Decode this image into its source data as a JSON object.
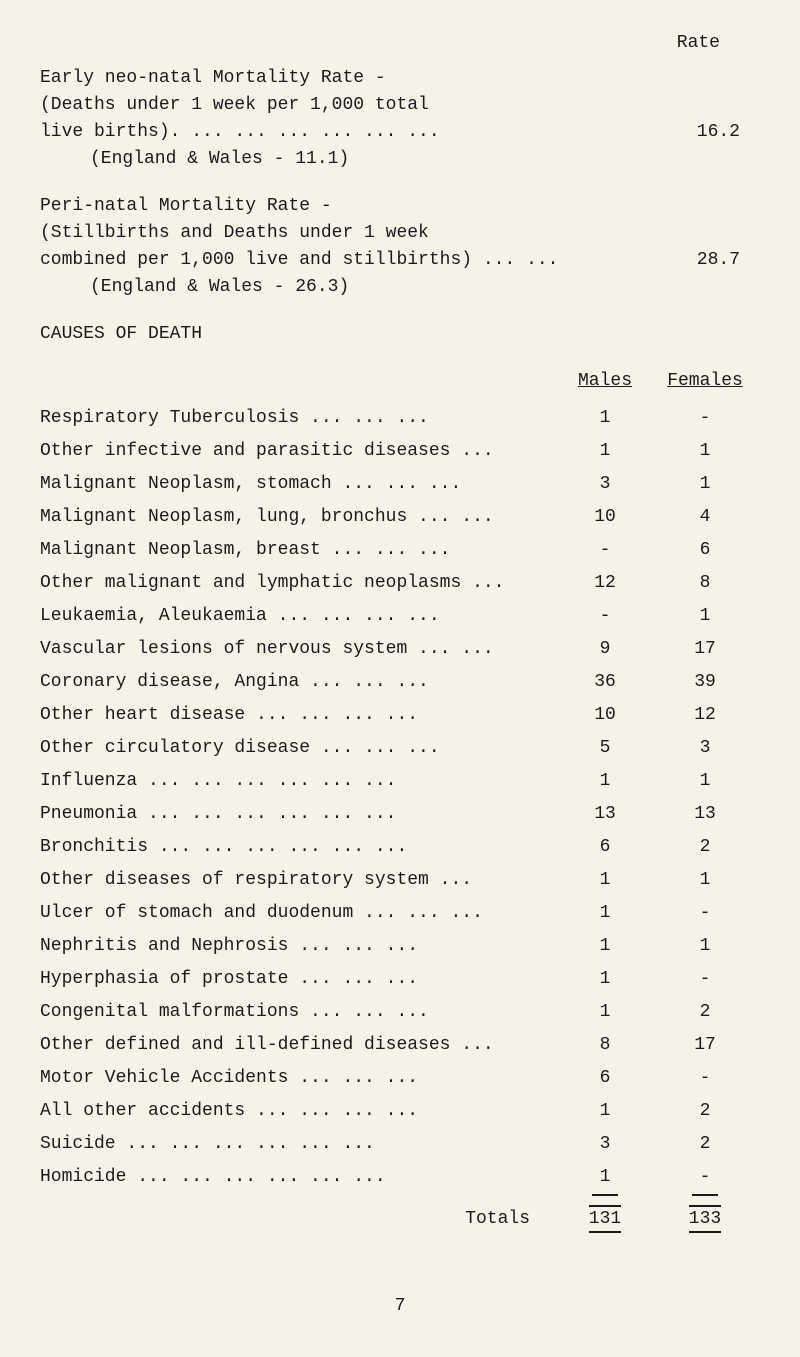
{
  "rates": {
    "header_label": "Rate",
    "early_neonatal": {
      "line1": "Early neo-natal Mortality Rate -",
      "line2": "(Deaths under 1 week per 1,000 total",
      "line3": "live births).    ...   ...   ...   ...   ...   ...",
      "line4": "(England & Wales - 11.1)",
      "value": "16.2"
    },
    "perinatal": {
      "line1": "Peri-natal Mortality Rate -",
      "line2": "(Stillbirths and Deaths under 1 week",
      "line3": "combined per 1,000 live and stillbirths)  ...   ...",
      "line4": "(England & Wales - 26.3)",
      "value": "28.7"
    }
  },
  "causes_heading": "CAUSES OF DEATH",
  "columns": {
    "males": "Males",
    "females": "Females"
  },
  "causes": [
    {
      "label": "Respiratory Tuberculosis      ...   ...   ...",
      "males": "1",
      "females": "-"
    },
    {
      "label": "Other infective and parasitic diseases    ...",
      "males": "1",
      "females": "1"
    },
    {
      "label": "Malignant Neoplasm, stomach   ...   ...   ...",
      "males": "3",
      "females": "1"
    },
    {
      "label": "Malignant Neoplasm, lung, bronchus  ...   ...",
      "males": "10",
      "females": "4"
    },
    {
      "label": "Malignant Neoplasm, breast    ...   ...   ...",
      "males": "-",
      "females": "6"
    },
    {
      "label": "Other malignant and lymphatic neoplasms   ...",
      "males": "12",
      "females": "8"
    },
    {
      "label": "Leukaemia, Aleukaemia   ...   ...   ...   ...",
      "males": "-",
      "females": "1"
    },
    {
      "label": "Vascular lesions of nervous system  ...   ...",
      "males": "9",
      "females": "17"
    },
    {
      "label": "Coronary disease, Angina     ...   ...   ...",
      "males": "36",
      "females": "39"
    },
    {
      "label": "Other heart disease     ...   ...   ...   ...",
      "males": "10",
      "females": "12"
    },
    {
      "label": "Other circulatory disease    ...   ...   ...",
      "males": "5",
      "females": "3"
    },
    {
      "label": "Influenza   ...   ...   ...   ...   ...   ...",
      "males": "1",
      "females": "1"
    },
    {
      "label": "Pneumonia   ...   ...   ...   ...   ...   ...",
      "males": "13",
      "females": "13"
    },
    {
      "label": "Bronchitis  ...   ...   ...   ...   ...   ...",
      "males": "6",
      "females": "2"
    },
    {
      "label": "Other diseases of respiratory system      ...",
      "males": "1",
      "females": "1"
    },
    {
      "label": "Ulcer of stomach and duodenum ...   ...   ...",
      "males": "1",
      "females": "-"
    },
    {
      "label": "Nephritis and Nephrosis       ...   ...   ...",
      "males": "1",
      "females": "1"
    },
    {
      "label": "Hyperphasia of prostate       ...   ...   ...",
      "males": "1",
      "females": "-"
    },
    {
      "label": "Congenital malformations      ...   ...   ...",
      "males": "1",
      "females": "2"
    },
    {
      "label": "Other defined and ill-defined diseases    ...",
      "males": "8",
      "females": "17"
    },
    {
      "label": "Motor Vehicle Accidents       ...   ...   ...",
      "males": "6",
      "females": "-"
    },
    {
      "label": "All other accidents     ...   ...   ...   ...",
      "males": "1",
      "females": "2"
    },
    {
      "label": "Suicide     ...   ...   ...   ...   ...   ...",
      "males": "3",
      "females": "2"
    },
    {
      "label": "Homicide    ...   ...   ...   ...   ...   ...",
      "males": "1",
      "females": "-"
    }
  ],
  "totals": {
    "label": "Totals",
    "males": "131",
    "females": "133"
  },
  "page_number": "7",
  "styling": {
    "background_color": "#f5f2e8",
    "text_color": "#1a1a1a",
    "font_family": "Courier New",
    "font_size_pt": 14
  }
}
